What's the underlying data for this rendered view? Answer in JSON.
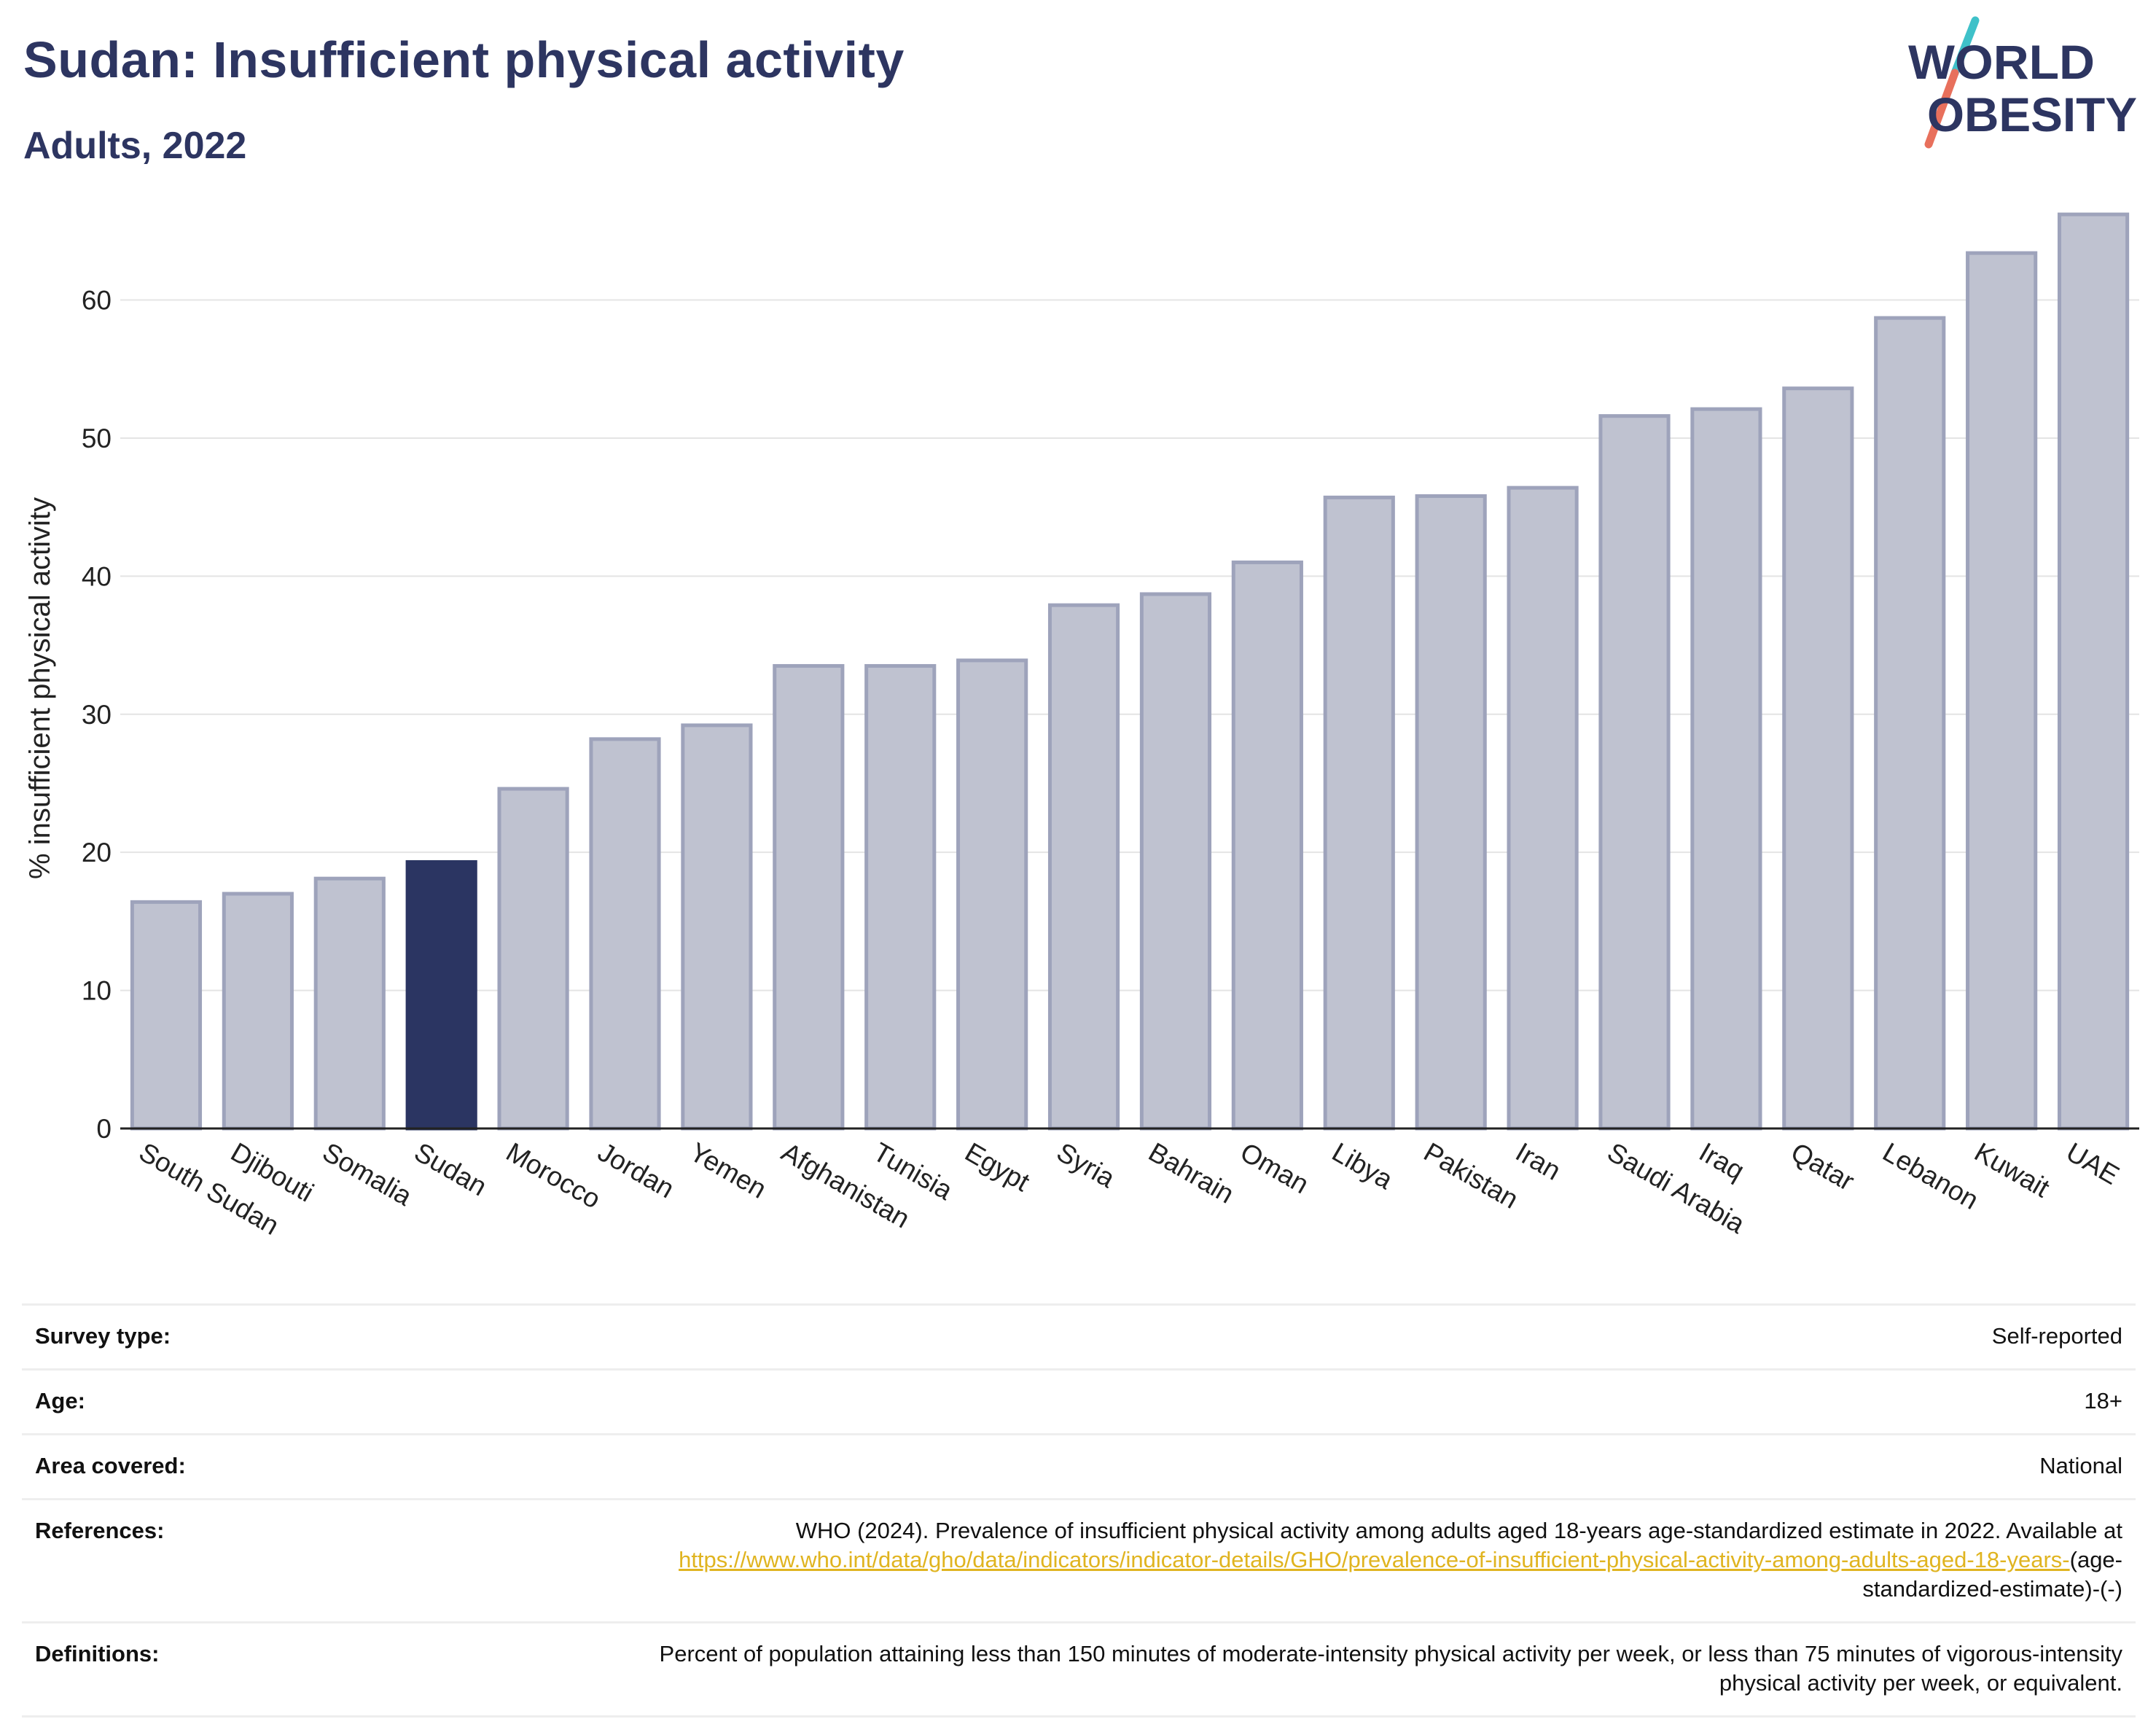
{
  "header": {
    "title": "Sudan: Insufficient physical activity",
    "subtitle": "Adults, 2022",
    "logo_line1": "WORLD",
    "logo_line2": "OBESITY"
  },
  "colors": {
    "title": "#2d3561",
    "bar": "#bfc2d0",
    "bar_border": "#9ea3bb",
    "highlight": "#2b3562",
    "link": "#e0b420",
    "logo_teal": "#3fc1c9",
    "logo_coral": "#e8705c"
  },
  "chart_data": {
    "type": "bar",
    "title": "",
    "xlabel": "",
    "ylabel": "% insufficient physical activity",
    "ylim": [
      0,
      68
    ],
    "yticks": [
      0,
      10,
      20,
      30,
      40,
      50,
      60
    ],
    "grid": true,
    "highlight": "Sudan",
    "categories": [
      "South Sudan",
      "Djibouti",
      "Somalia",
      "Sudan",
      "Morocco",
      "Jordan",
      "Yemen",
      "Afghanistan",
      "Tunisia",
      "Egypt",
      "Syria",
      "Bahrain",
      "Oman",
      "Libya",
      "Pakistan",
      "Iran",
      "Saudi Arabia",
      "Iraq",
      "Qatar",
      "Lebanon",
      "Kuwait",
      "UAE"
    ],
    "values": [
      16.4,
      17.0,
      18.1,
      19.3,
      24.6,
      28.2,
      29.2,
      33.5,
      33.5,
      33.9,
      37.9,
      38.7,
      41.0,
      45.7,
      45.8,
      46.4,
      51.6,
      52.1,
      53.6,
      58.7,
      63.4,
      66.2
    ]
  },
  "info": {
    "survey_type_label": "Survey type:",
    "survey_type_value": "Self-reported",
    "age_label": "Age:",
    "age_value": "18+",
    "area_label": "Area covered:",
    "area_value": "National",
    "references_label": "References:",
    "references_text": "WHO (2024). Prevalence of insufficient physical activity among adults aged 18-years age-standardized estimate in 2022. Available at",
    "references_link": "https://www.who.int/data/gho/data/indicators/indicator-details/GHO/prevalence-of-insufficient-physical-activity-among-adults-aged-18-years-",
    "references_suffix": "(age-standardized-estimate)-(-)",
    "definitions_label": "Definitions:",
    "definitions_value": "Percent of population attaining less than 150 minutes of moderate-intensity physical activity per week, or less than 75 minutes of vigorous-intensity physical activity per week, or equivalent."
  }
}
